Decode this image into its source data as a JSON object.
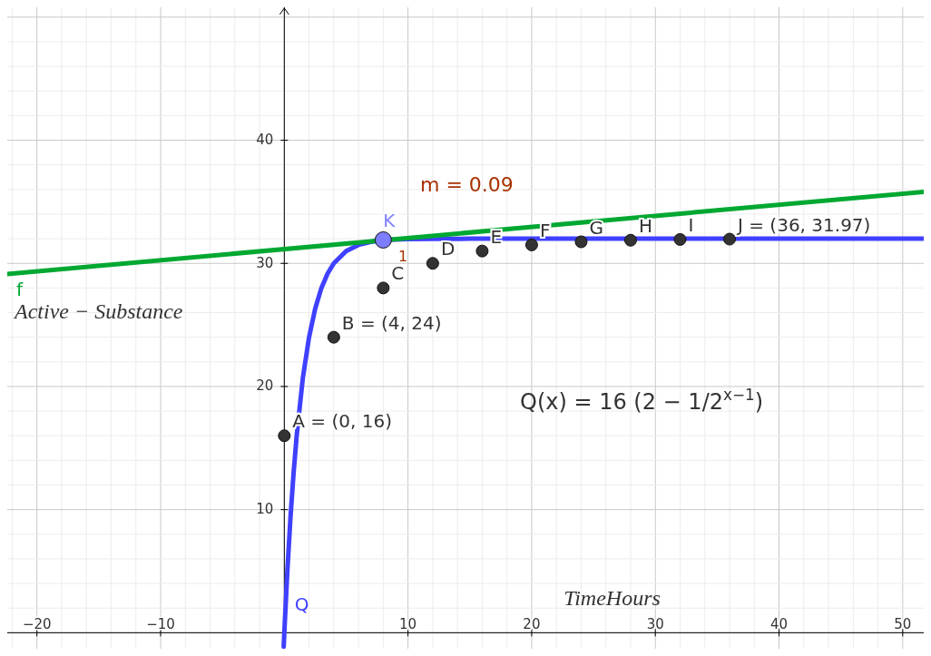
{
  "chart_data": {
    "type": "line",
    "xlabel": "TimeHours",
    "ylabel": "Active − Substance",
    "xlim": [
      -22.4,
      51.7
    ],
    "ylim": [
      -1.3,
      50.8
    ],
    "xticks": [
      -20,
      -10,
      10,
      20,
      30,
      40,
      50
    ],
    "yticks": [
      10,
      20,
      30,
      40
    ],
    "grid": true,
    "legend": false,
    "series": [
      {
        "name": "Q",
        "color": "#4040ff",
        "x": [
          -0.05,
          0,
          0.25,
          0.5,
          0.75,
          1,
          1.5,
          2,
          2.5,
          3,
          3.5,
          4,
          5,
          6,
          7,
          8,
          10,
          12,
          15,
          20,
          30,
          40,
          51.7
        ],
        "values": [
          -1.13,
          0,
          5.09,
          9.37,
          12.97,
          16,
          20.69,
          24,
          26.34,
          28,
          29.17,
          30,
          31,
          31.5,
          31.75,
          31.9,
          31.97,
          31.99,
          32,
          32,
          32,
          32,
          32
        ]
      },
      {
        "name": "f",
        "type": "line",
        "color": "#00a832",
        "x": [
          -22.4,
          51.7
        ],
        "values": [
          29.14,
          35.81
        ]
      },
      {
        "type": "scatter",
        "marker": "circle",
        "color": "#333333",
        "x": [
          0,
          4,
          8,
          12,
          16,
          20,
          24,
          28,
          32,
          36
        ],
        "values": [
          16,
          24,
          28,
          30,
          31,
          31.5,
          31.75,
          31.88,
          31.94,
          31.97
        ]
      },
      {
        "type": "scatter",
        "marker": "circle",
        "color": "#7d7dff",
        "x": [
          8
        ],
        "values": [
          31.9
        ]
      }
    ],
    "annotations": [
      "m = 0.09",
      "Q(x) = 16 (2 − 1/2$^{x−1}$)",
      "1",
      {
        "text": "A = (0, 16)",
        "x": 0,
        "y": 16
      },
      {
        "text": "B = (4, 24)",
        "x": 4,
        "y": 24
      },
      {
        "text": "C",
        "x": 8,
        "y": 28
      },
      {
        "text": "D",
        "x": 12,
        "y": 30
      },
      {
        "text": "E",
        "x": 16,
        "y": 31
      },
      {
        "text": "F",
        "x": 20,
        "y": 31.5
      },
      {
        "text": "G",
        "x": 24,
        "y": 31.75
      },
      {
        "text": "H",
        "x": 28,
        "y": 31.88
      },
      {
        "text": "I",
        "x": 32,
        "y": 31.94
      },
      {
        "text": "J = (36, 31.97)",
        "x": 36,
        "y": 31.97
      },
      {
        "text": "K",
        "x": 8,
        "y": 31.9
      }
    ]
  }
}
